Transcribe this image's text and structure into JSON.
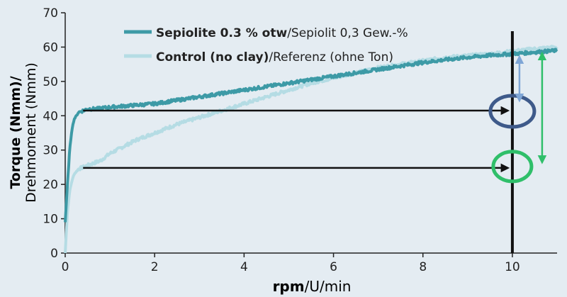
{
  "chart_data": {
    "type": "line",
    "xlabel_bold": "rpm",
    "xlabel_rest": "/U/min",
    "ylabel_line1": "Torque (Nmm)/",
    "ylabel_line2": "Drehmoment (Nmm)",
    "xlim": [
      0,
      11
    ],
    "ylim": [
      0,
      70
    ],
    "xticks": [
      "0",
      "2",
      "4",
      "6",
      "8",
      "10"
    ],
    "xtick_values": [
      0,
      2,
      4,
      6,
      8,
      10
    ],
    "yticks": [
      "0",
      "10",
      "20",
      "30",
      "40",
      "50",
      "60",
      "70"
    ],
    "ytick_values": [
      0,
      10,
      20,
      30,
      40,
      50,
      60,
      70
    ],
    "grid": false,
    "legend_position": "top-center",
    "series": [
      {
        "name_bold": "Sepiolite 0.3 % otw",
        "name_rest": "/Sepiolit 0,3 Gew.-%",
        "color": "#3d9aa6",
        "x": [
          0,
          0.05,
          0.1,
          0.15,
          0.2,
          0.3,
          0.4,
          0.5,
          0.7,
          1.0,
          1.5,
          2.0,
          2.5,
          3.0,
          3.5,
          4.0,
          4.5,
          5.0,
          5.5,
          6.0,
          6.5,
          7.0,
          7.5,
          8.0,
          8.5,
          9.0,
          9.5,
          10.0,
          10.5,
          11.0
        ],
        "y": [
          9,
          20,
          30,
          36,
          39,
          41,
          41.5,
          42,
          42,
          42.5,
          43,
          43.5,
          44.5,
          45.5,
          46.5,
          47.5,
          48.5,
          49.5,
          50.5,
          51.5,
          52.5,
          53.5,
          54.5,
          55.5,
          56.3,
          57,
          57.6,
          58,
          58.5,
          59
        ]
      },
      {
        "name_bold": "Control (no clay)",
        "name_rest": "/Referenz (ohne Ton)",
        "color": "#b5dce4",
        "x": [
          0,
          0.05,
          0.1,
          0.15,
          0.2,
          0.3,
          0.4,
          0.6,
          0.8,
          1.0,
          1.3,
          1.6,
          2.0,
          2.5,
          3.0,
          3.5,
          4.0,
          4.5,
          5.0,
          5.5,
          6.0,
          6.5,
          7.0,
          7.5,
          8.0,
          8.5,
          9.0,
          9.5,
          10.0,
          10.5,
          11.0
        ],
        "y": [
          0,
          12,
          18,
          21,
          23,
          24.5,
          25,
          26,
          27,
          29,
          31,
          33,
          35,
          37.5,
          39.5,
          41.5,
          43.5,
          45.5,
          47.5,
          49.5,
          51,
          52.5,
          54,
          55,
          56,
          57,
          57.5,
          58,
          58.8,
          59.5,
          60
        ]
      }
    ],
    "annotations": {
      "vertical_line_x": 10,
      "arrow_upper_y": 41.5,
      "arrow_lower_y": 24.8,
      "arrow_start_x": 0.4,
      "arrow_end_x": 9.9
    }
  }
}
